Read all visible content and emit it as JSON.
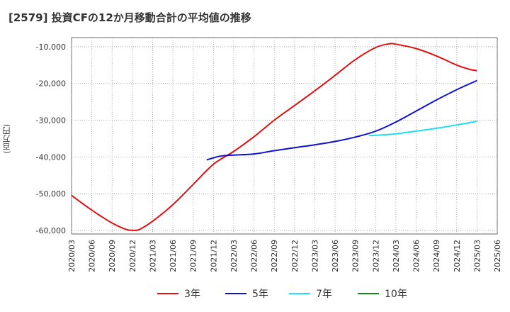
{
  "chart_data": {
    "type": "line",
    "title": "[2579]  投資CFの12か月移動合計の平均値の推移",
    "ylabel": "(百万円)",
    "xlabel": "",
    "ylim": [
      -61000,
      -7500
    ],
    "yticks": [
      -10000,
      -20000,
      -30000,
      -40000,
      -50000,
      -60000
    ],
    "ytick_labels": [
      "-10,000",
      "-20,000",
      "-30,000",
      "-40,000",
      "-50,000",
      "-60,000"
    ],
    "x_range": [
      "2020/03",
      "2025/06"
    ],
    "xtick_labels": [
      "2020/03",
      "2020/06",
      "2020/09",
      "2020/12",
      "2021/03",
      "2021/06",
      "2021/09",
      "2021/12",
      "2022/03",
      "2022/06",
      "2022/09",
      "2022/12",
      "2023/03",
      "2023/06",
      "2023/09",
      "2023/12",
      "2024/03",
      "2024/06",
      "2024/09",
      "2024/12",
      "2025/03",
      "2025/06"
    ],
    "grid": true,
    "legend_position": "bottom",
    "series": [
      {
        "name": "3年",
        "color": "#dd1111",
        "points": [
          [
            "2020/03",
            -50500
          ],
          [
            "2020/06",
            -54500
          ],
          [
            "2020/09",
            -58000
          ],
          [
            "2020/11",
            -59700
          ],
          [
            "2020/12",
            -60000
          ],
          [
            "2021/01",
            -59800
          ],
          [
            "2021/03",
            -57500
          ],
          [
            "2021/06",
            -53000
          ],
          [
            "2021/09",
            -47500
          ],
          [
            "2021/12",
            -42000
          ],
          [
            "2022/03",
            -38500
          ],
          [
            "2022/06",
            -34500
          ],
          [
            "2022/09",
            -30000
          ],
          [
            "2022/12",
            -26000
          ],
          [
            "2023/03",
            -22000
          ],
          [
            "2023/06",
            -17800
          ],
          [
            "2023/09",
            -13500
          ],
          [
            "2023/12",
            -10200
          ],
          [
            "2024/02",
            -9200
          ],
          [
            "2024/03",
            -9300
          ],
          [
            "2024/06",
            -10500
          ],
          [
            "2024/09",
            -12500
          ],
          [
            "2024/12",
            -15000
          ],
          [
            "2025/02",
            -16200
          ],
          [
            "2025/03",
            -16500
          ]
        ]
      },
      {
        "name": "5年",
        "color": "#1111cc",
        "points": [
          [
            "2021/11",
            -40800
          ],
          [
            "2022/01",
            -39800
          ],
          [
            "2022/03",
            -39500
          ],
          [
            "2022/06",
            -39200
          ],
          [
            "2022/09",
            -38300
          ],
          [
            "2022/12",
            -37500
          ],
          [
            "2023/03",
            -36700
          ],
          [
            "2023/06",
            -35800
          ],
          [
            "2023/09",
            -34600
          ],
          [
            "2023/12",
            -33000
          ],
          [
            "2024/03",
            -30500
          ],
          [
            "2024/06",
            -27500
          ],
          [
            "2024/09",
            -24500
          ],
          [
            "2024/12",
            -21700
          ],
          [
            "2025/03",
            -19200
          ]
        ]
      },
      {
        "name": "7年",
        "color": "#22ddee",
        "points": [
          [
            "2023/11",
            -34200
          ],
          [
            "2024/01",
            -34000
          ],
          [
            "2024/03",
            -33700
          ],
          [
            "2024/06",
            -33000
          ],
          [
            "2024/09",
            -32200
          ],
          [
            "2024/12",
            -31300
          ],
          [
            "2025/03",
            -30300
          ]
        ]
      },
      {
        "name": "10年",
        "color": "#118811",
        "points": []
      }
    ]
  }
}
